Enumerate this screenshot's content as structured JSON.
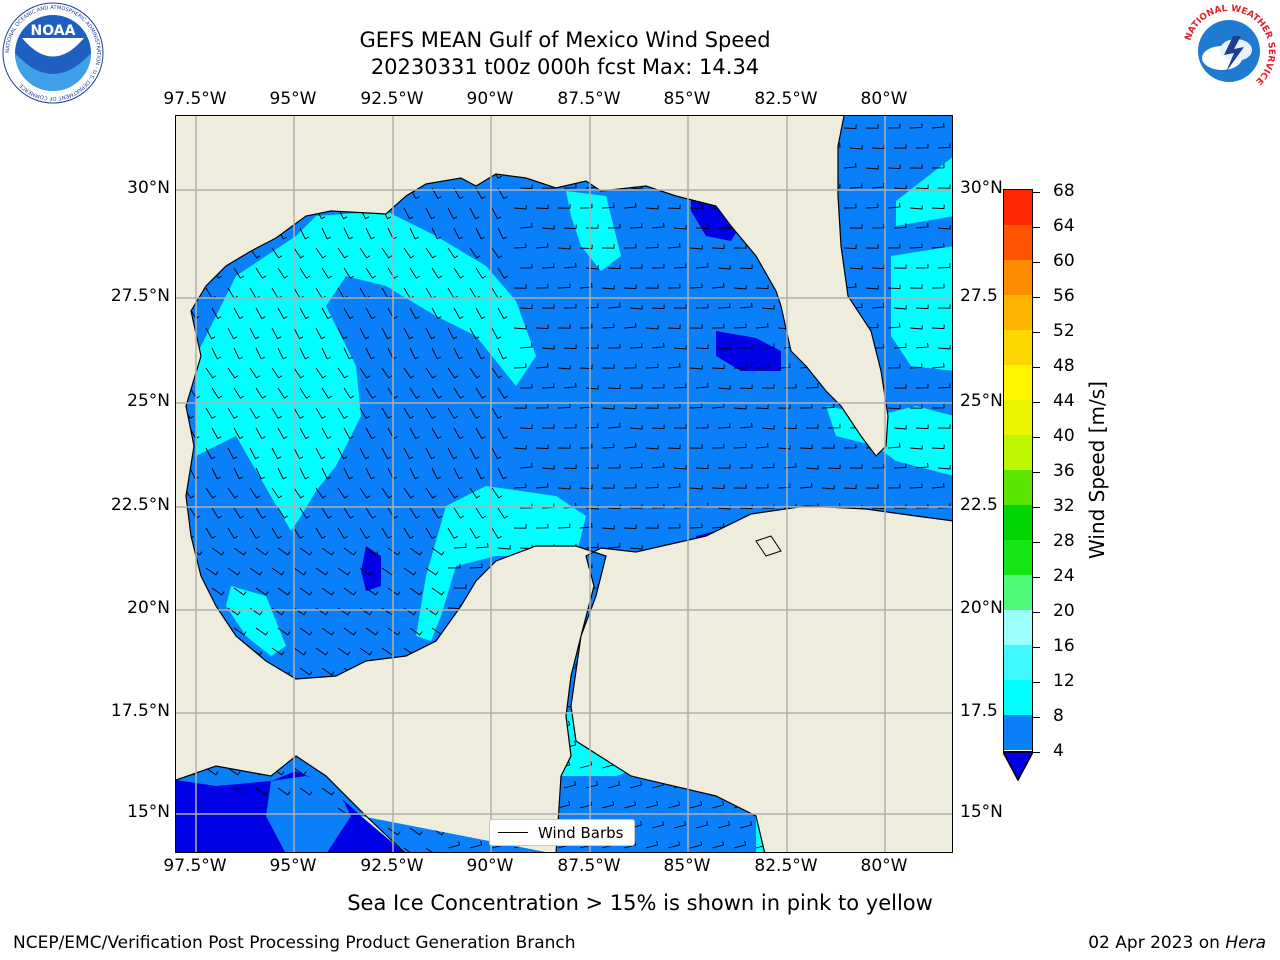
{
  "title": {
    "line1": "GEFS MEAN Gulf of Mexico Wind Speed",
    "line2": "20230331 t00z 000h fcst   Max: 14.34"
  },
  "axes": {
    "lon_ticks": [
      "97.5°W",
      "95°W",
      "92.5°W",
      "90°W",
      "87.5°W",
      "85°W",
      "82.5°W",
      "80°W"
    ],
    "lat_ticks_left": [
      "30°N",
      "27.5°N",
      "25°N",
      "22.5°N",
      "20°N",
      "17.5°N",
      "15°N"
    ],
    "lat_ticks_right": [
      "30°N",
      "27.5",
      "25°N",
      "22.5",
      "20°N",
      "17.5",
      "15°N"
    ]
  },
  "legend": {
    "label": "Wind Barbs"
  },
  "colorbar": {
    "title": "Wind Speed [m/s]",
    "levels": [
      "4",
      "8",
      "12",
      "16",
      "20",
      "24",
      "28",
      "32",
      "36",
      "40",
      "44",
      "48",
      "52",
      "56",
      "60",
      "64",
      "68"
    ],
    "colors": [
      "#0a7ffa",
      "#00ffff",
      "#3ff7ff",
      "#9dfffb",
      "#50fa78",
      "#14e614",
      "#00d600",
      "#5ae600",
      "#bef500",
      "#ebf500",
      "#fff500",
      "#ffd700",
      "#ffb400",
      "#ff8c00",
      "#ff5500",
      "#ff2800"
    ],
    "under_color": "#0000e6"
  },
  "subtitle": "Sea Ice Concentration > 15% is shown in pink to yellow",
  "footer": {
    "left": "NCEP/EMC/Verification Post Processing Product Generation Branch",
    "right_date": "02 Apr 2023 on ",
    "right_host": "Hera"
  },
  "logos": {
    "noaa": "NOAA",
    "noaa_ring_text": "NATIONAL OCEANIC AND ATMOSPHERIC ADMINISTRATION · U.S. DEPARTMENT OF COMMERCE",
    "nws_ring_text": "NATIONAL WEATHER SERVICE"
  },
  "map": {
    "land_color": "#eeecdc",
    "grid_color": "#b0b0b0",
    "chart_data": {
      "type": "heatmap",
      "variable": "Wind Speed [m/s]",
      "max_value": 14.34,
      "lon_range": [
        -98.5,
        -78.6
      ],
      "lat_range": [
        14.0,
        31.8
      ],
      "bands_present": [
        "<4",
        "4-8",
        "8-12"
      ]
    }
  }
}
